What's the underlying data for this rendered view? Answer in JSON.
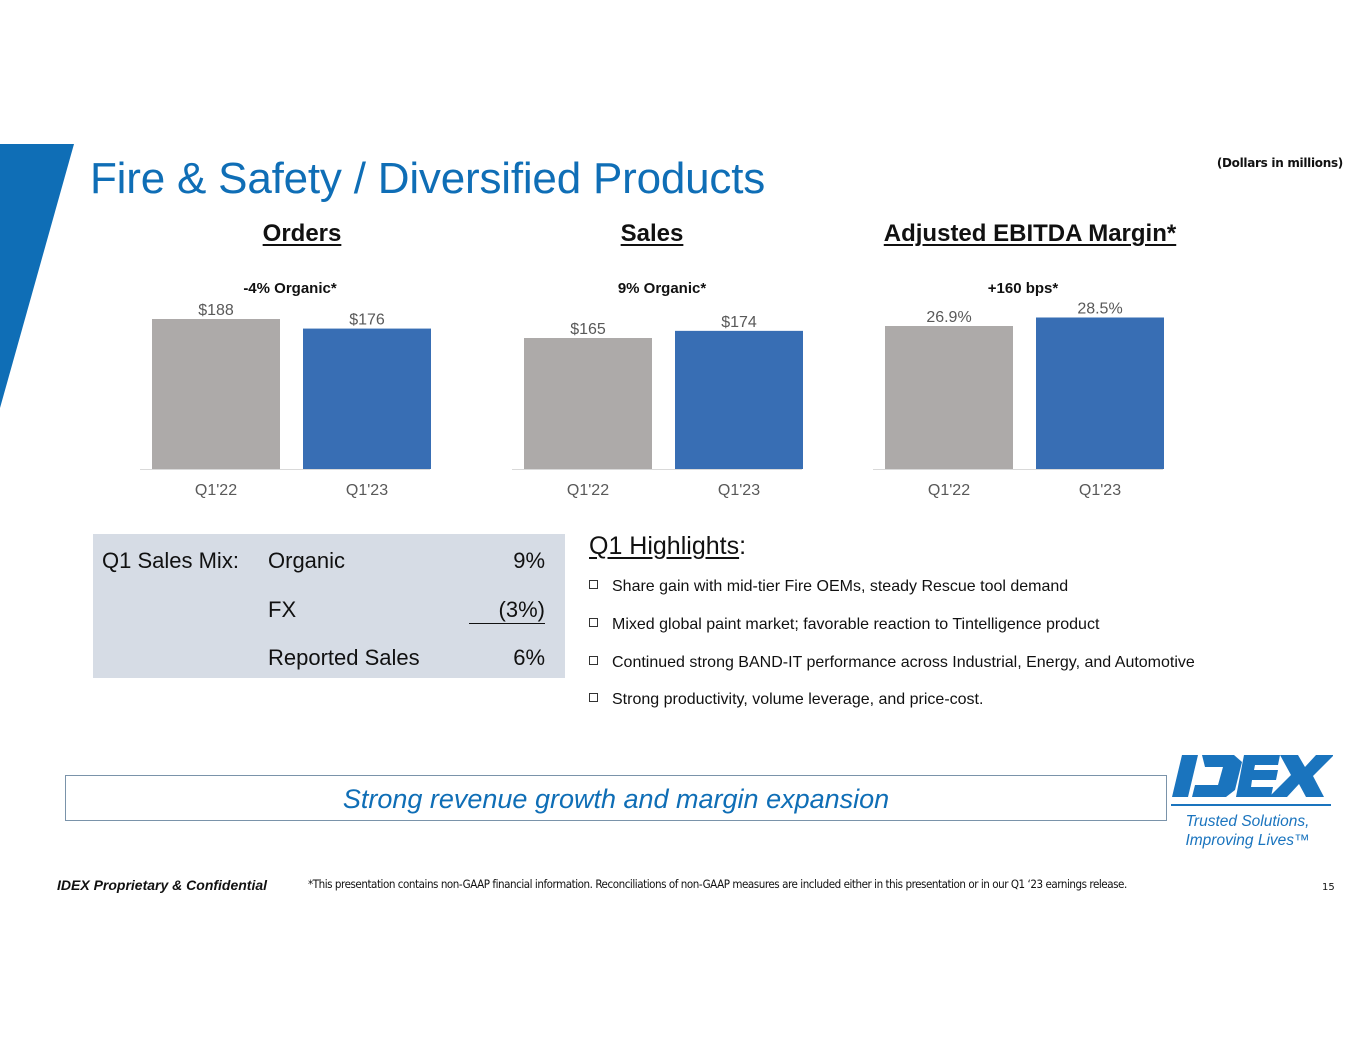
{
  "slide": {
    "title": "Fire & Safety / Diversified Products",
    "units_note": "(Dollars in millions)",
    "page_number": "15",
    "colors": {
      "brand_blue": "#0F6EB6",
      "bar_prior": "#ADAAA9",
      "bar_current": "#386EB4",
      "mix_panel": "#D6DCE5"
    }
  },
  "chart_data": [
    {
      "type": "bar",
      "title": "Orders",
      "annotation": "-4% Organic*",
      "categories": [
        "Q1'22",
        "Q1'23"
      ],
      "values": [
        188,
        176
      ],
      "value_labels": [
        "$188",
        "$176"
      ],
      "xlabel": "",
      "ylabel": "",
      "unit": "$M",
      "grid": false,
      "legend": "none"
    },
    {
      "type": "bar",
      "title": "Sales",
      "annotation": "9% Organic*",
      "categories": [
        "Q1'22",
        "Q1'23"
      ],
      "values": [
        165,
        174
      ],
      "value_labels": [
        "$165",
        "$174"
      ],
      "xlabel": "",
      "ylabel": "",
      "unit": "$M",
      "grid": false,
      "legend": "none"
    },
    {
      "type": "bar",
      "title": "Adjusted EBITDA Margin*",
      "annotation": "+160 bps*",
      "categories": [
        "Q1'22",
        "Q1'23"
      ],
      "values": [
        26.9,
        28.5
      ],
      "value_labels": [
        "26.9%",
        "28.5%"
      ],
      "xlabel": "",
      "ylabel": "",
      "unit": "%",
      "grid": false,
      "legend": "none"
    }
  ],
  "sales_mix": {
    "label": "Q1 Sales Mix:",
    "rows": [
      {
        "name": "Organic",
        "value": "9%"
      },
      {
        "name": "FX",
        "value": "(3%)"
      },
      {
        "name": "Reported Sales",
        "value": "6%"
      }
    ]
  },
  "highlights": {
    "title": "Q1 Highlights",
    "title_suffix": ":",
    "items": [
      "Share gain with mid-tier Fire OEMs, steady Rescue tool demand",
      "Mixed global paint market; favorable reaction to Tintelligence product",
      "Continued strong BAND-IT performance across Industrial, Energy, and Automotive",
      "Strong productivity, volume leverage, and price-cost."
    ]
  },
  "banner": {
    "text": "Strong revenue growth and margin expansion"
  },
  "logo": {
    "wordmark": "IDEX",
    "tagline_line1": "Trusted Solutions,",
    "tagline_line2": "Improving Lives™"
  },
  "footer": {
    "confidential": "IDEX Proprietary & Confidential",
    "disclaimer": "*This presentation contains non-GAAP financial information. Reconciliations of non-GAAP measures are included either in this presentation or in our Q1 ‘23 earnings release."
  }
}
